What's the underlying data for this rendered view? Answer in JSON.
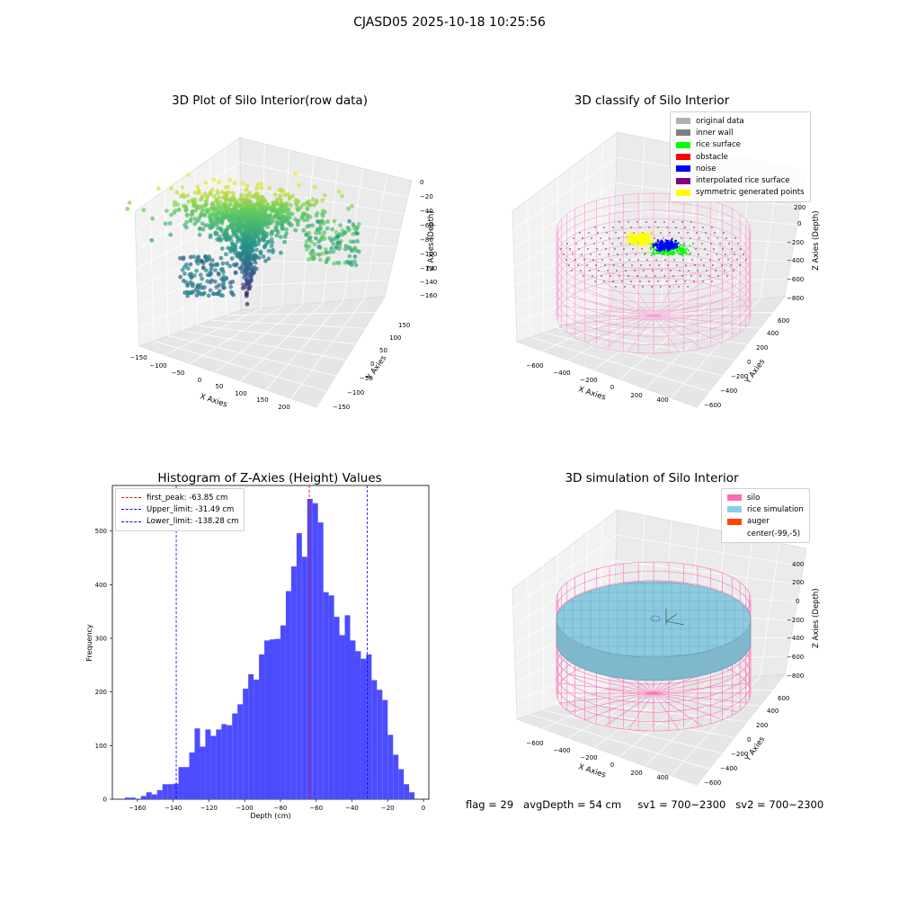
{
  "figure": {
    "suptitle": "CJASD05 2025-10-18 10:25:56"
  },
  "panels": {
    "raw": {
      "title": "3D Plot of Silo Interior(row data)",
      "x_ticks": [
        "−150",
        "−100",
        "−50",
        "0",
        "50",
        "100",
        "150",
        "200"
      ],
      "y_ticks": [
        "−150",
        "−100",
        "−50",
        "0",
        "50",
        "100",
        "150"
      ],
      "z_ticks": [
        "0",
        "−20",
        "−40",
        "−60",
        "−80",
        "−100",
        "−120",
        "−140",
        "−160"
      ],
      "xlabel": "X Axies",
      "ylabel": "Y Axies",
      "zlabel": "Z Axies (Depth)"
    },
    "classify": {
      "title": "3D classify of Silo Interior",
      "x_ticks": [
        "−600",
        "−400",
        "−200",
        "0",
        "200",
        "400"
      ],
      "y_ticks": [
        "−600",
        "−400",
        "−200",
        "0",
        "200",
        "400",
        "600"
      ],
      "z_ticks": [
        "200",
        "0",
        "−200",
        "−400",
        "−600",
        "−800"
      ],
      "xlabel": "X Axies",
      "ylabel": "Y Axies",
      "zlabel": "Z Axies (Depth)",
      "legend": [
        {
          "label": "original data",
          "color": "#b0b0b0"
        },
        {
          "label": "inner wall",
          "color": "#808080"
        },
        {
          "label": "rice surface",
          "color": "#00ff00"
        },
        {
          "label": "obstacle",
          "color": "#ff0000"
        },
        {
          "label": "noise",
          "color": "#0000ff"
        },
        {
          "label": "interpolated rice surface",
          "color": "#800080"
        },
        {
          "label": "symmetric generated points",
          "color": "#ffff00"
        }
      ]
    },
    "simulation": {
      "title": "3D simulation of Silo Interior",
      "x_ticks": [
        "−600",
        "−400",
        "−200",
        "0",
        "200",
        "400"
      ],
      "y_ticks": [
        "−600",
        "−400",
        "−200",
        "0",
        "200",
        "400",
        "600"
      ],
      "z_ticks": [
        "400",
        "200",
        "0",
        "−200",
        "−400",
        "−600",
        "−800"
      ],
      "xlabel": "X Axies",
      "ylabel": "Y Axies",
      "zlabel": "Z Axies (Depth)",
      "legend": [
        {
          "label": "silo",
          "color": "#ff69b4"
        },
        {
          "label": "rice simulation",
          "color": "#87ceeb"
        },
        {
          "label": "auger",
          "color": "#ff4500"
        },
        {
          "label": "center(-99,-5)",
          "color": "#ffffff"
        }
      ]
    }
  },
  "chart_data": {
    "type": "bar",
    "title": "Histogram of Z-Axies (Height) Values",
    "xlabel": "Depth (cm)",
    "ylabel": "Frequency",
    "xlim": [
      -174,
      3
    ],
    "ylim": [
      0,
      585
    ],
    "x_ticks": [
      -160,
      -140,
      -120,
      -100,
      -80,
      -60,
      -40,
      -20,
      0
    ],
    "x_tick_labels": [
      "−160",
      "−140",
      "−120",
      "−100",
      "−80",
      "−60",
      "−40",
      "−20",
      "0"
    ],
    "y_ticks": [
      0,
      100,
      200,
      300,
      400,
      500
    ],
    "y_tick_labels": [
      "0",
      "100",
      "200",
      "300",
      "400",
      "500"
    ],
    "bar_color": "#4c4cff",
    "bins": [
      [
        -167,
        -164,
        3
      ],
      [
        -164,
        -161,
        3
      ],
      [
        -161,
        -158,
        0
      ],
      [
        -158,
        -155,
        6
      ],
      [
        -155,
        -152,
        13
      ],
      [
        -152,
        -149,
        9
      ],
      [
        -149,
        -146,
        17
      ],
      [
        -146,
        -143,
        28
      ],
      [
        -143,
        -140,
        28
      ],
      [
        -140,
        -137,
        29
      ],
      [
        -137,
        -134,
        60
      ],
      [
        -134,
        -131,
        60
      ],
      [
        -131,
        -128,
        87
      ],
      [
        -128,
        -125,
        132
      ],
      [
        -125,
        -122,
        98
      ],
      [
        -122,
        -119,
        130
      ],
      [
        -119,
        -116,
        118
      ],
      [
        -116,
        -113,
        130
      ],
      [
        -113,
        -110,
        140
      ],
      [
        -110,
        -107,
        138
      ],
      [
        -107,
        -104,
        160
      ],
      [
        -104,
        -101,
        177
      ],
      [
        -101,
        -98,
        206
      ],
      [
        -98,
        -95,
        233
      ],
      [
        -95,
        -92,
        223
      ],
      [
        -92,
        -89,
        270
      ],
      [
        -89,
        -86,
        296
      ],
      [
        -86,
        -83,
        298
      ],
      [
        -83,
        -80,
        299
      ],
      [
        -80,
        -77,
        324
      ],
      [
        -77,
        -74,
        388
      ],
      [
        -74,
        -71,
        434
      ],
      [
        -71,
        -68,
        496
      ],
      [
        -68,
        -65,
        452
      ],
      [
        -65,
        -62,
        560
      ],
      [
        -62,
        -59,
        552
      ],
      [
        -59,
        -56,
        516
      ],
      [
        -56,
        -53,
        386
      ],
      [
        -53,
        -50,
        380
      ],
      [
        -50,
        -47,
        340
      ],
      [
        -47,
        -44,
        306
      ],
      [
        -44,
        -41,
        343
      ],
      [
        -41,
        -38,
        296
      ],
      [
        -38,
        -35,
        276
      ],
      [
        -35,
        -32,
        262
      ],
      [
        -32,
        -29,
        270
      ],
      [
        -29,
        -26,
        222
      ],
      [
        -26,
        -23,
        204
      ],
      [
        -23,
        -20,
        185
      ],
      [
        -20,
        -17,
        120
      ],
      [
        -17,
        -14,
        83
      ],
      [
        -14,
        -11,
        56
      ],
      [
        -11,
        -8,
        28
      ],
      [
        -8,
        -5,
        13
      ]
    ],
    "vlines": [
      {
        "x": -63.85,
        "label": "first_peak: -63.85 cm",
        "color": "#ff0000"
      },
      {
        "x": -31.49,
        "label": "Upper_limit: -31.49 cm",
        "color": "#0000ff"
      },
      {
        "x": -138.28,
        "label": "Lower_limit: -138.28 cm",
        "color": "#0000ff"
      }
    ]
  },
  "status": {
    "flag": "flag = 29",
    "avg_depth": "avgDepth = 54 cm",
    "sv1": "sv1 = 700~2300",
    "sv2": "sv2 = 700~2300"
  }
}
